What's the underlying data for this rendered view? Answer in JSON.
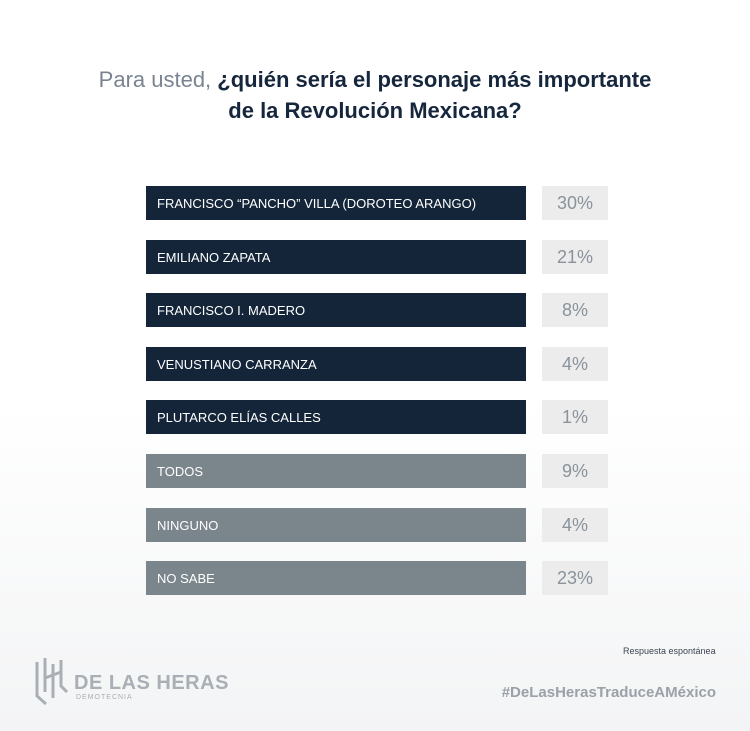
{
  "title": {
    "lead": "Para usted, ",
    "question_line1": "¿quién sería el personaje más importante",
    "question_line2": "de la Revolución Mexicana?"
  },
  "chart_data": {
    "type": "bar",
    "orientation": "horizontal",
    "categories": [
      "FRANCISCO “PANCHO” VILLA (DOROTEO ARANGO)",
      "EMILIANO ZAPATA",
      "FRANCISCO I. MADERO",
      "VENUSTIANO CARRANZA",
      "PLUTARCO ELÍAS CALLES",
      "TODOS",
      "NINGUNO",
      "NO SABE"
    ],
    "values": [
      30,
      21,
      8,
      4,
      1,
      9,
      4,
      23
    ],
    "value_labels": [
      "30%",
      "21%",
      "8%",
      "4%",
      "1%",
      "9%",
      "4%",
      "23%"
    ],
    "bar_colors": [
      "#14253a",
      "#14253a",
      "#14253a",
      "#14253a",
      "#14253a",
      "#7b858c",
      "#7b858c",
      "#7b858c"
    ]
  },
  "footer": {
    "note": "Respuesta espontánea",
    "hashtag": "#DeLasHerasTraduceAMéxico",
    "brand_name": "DE LAS HERAS",
    "brand_sub": "DEMOTECNIA"
  }
}
